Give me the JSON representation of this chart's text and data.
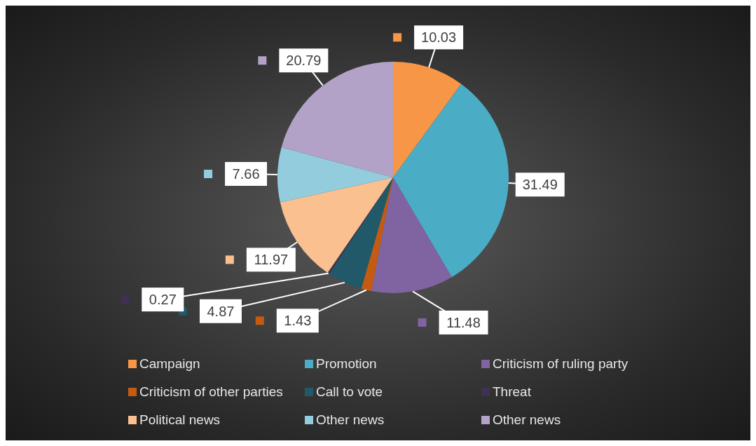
{
  "chart_data": {
    "type": "pie",
    "categories": [
      "Campaign",
      "Promotion",
      "Criticism of ruling party",
      "Criticism of other parties",
      "Call to vote",
      "Threat",
      "Political news",
      "Other news",
      "Other news"
    ],
    "values": [
      10.03,
      31.49,
      11.48,
      1.43,
      4.87,
      0.27,
      11.97,
      7.66,
      20.79
    ],
    "colors": [
      "#f79646",
      "#4bacc6",
      "#8064a2",
      "#c55a11",
      "#215968",
      "#3f3151",
      "#fac090",
      "#93cddd",
      "#b3a2c7"
    ],
    "data_labels": true,
    "legend": "bottom"
  }
}
